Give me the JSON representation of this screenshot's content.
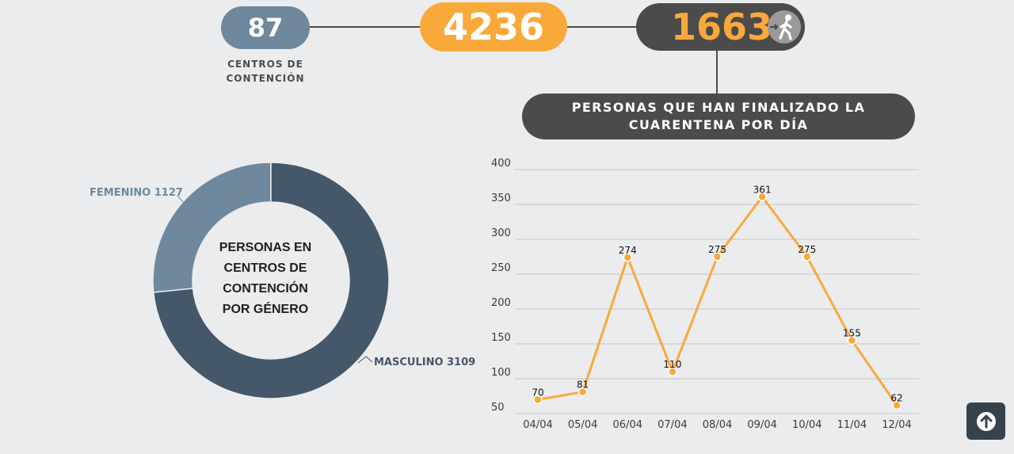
{
  "stats": {
    "centros": "87",
    "centros_label": "CENTROS DE\nCONTENCIÓN",
    "total": "4236",
    "finalizados": "1663"
  },
  "banner": "PERSONAS QUE HAN FINALIZADO LA\nCUARENTENA POR DÍA",
  "donut": {
    "center_label": "PERSONAS EN\nCENTROS DE\nCONTENCIÓN\nPOR GÉNERO",
    "femenino_label": "FEMENINO 1127",
    "masculino_label": "MASCULINO 3109"
  },
  "colors": {
    "femenino": "#6e889e",
    "masculino": "#44586a",
    "line": "#f9a93a",
    "accent": "#f9a93a",
    "dark": "#4b4b4b"
  },
  "chart_data": [
    {
      "type": "pie",
      "title": "PERSONAS EN CENTROS DE CONTENCIÓN POR GÉNERO",
      "categories": [
        "FEMENINO",
        "MASCULINO"
      ],
      "values": [
        1127,
        3109
      ]
    },
    {
      "type": "line",
      "title": "PERSONAS QUE HAN FINALIZADO LA CUARENTENA POR DÍA",
      "categories": [
        "04/04",
        "05/04",
        "06/04",
        "07/04",
        "08/04",
        "09/04",
        "10/04",
        "11/04",
        "12/04"
      ],
      "values": [
        70,
        81,
        274,
        110,
        275,
        361,
        275,
        155,
        62
      ],
      "yticks": [
        "50",
        "100",
        "150",
        "200",
        "250",
        "300",
        "350",
        "400"
      ],
      "ylim": [
        50,
        400
      ],
      "grid": true
    }
  ]
}
